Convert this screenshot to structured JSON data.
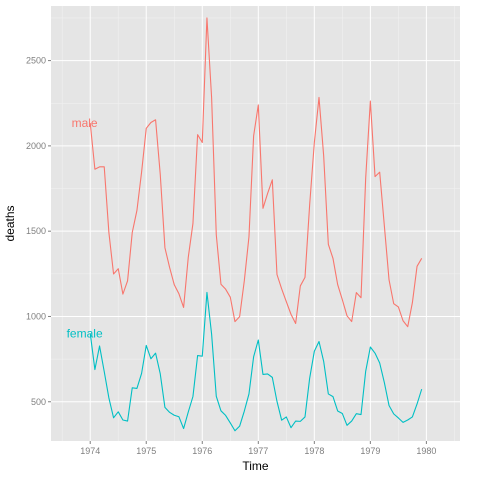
{
  "chart_data": {
    "type": "line",
    "xlabel": "Time",
    "ylabel": "deaths",
    "xlim": [
      1973.3,
      1980.6
    ],
    "ylim": [
      270,
      2820
    ],
    "x_ticks": [
      1974,
      1975,
      1976,
      1977,
      1978,
      1979,
      1980
    ],
    "x_tick_labels": [
      "1974",
      "1975",
      "1976",
      "1977",
      "1978",
      "1979",
      "1980"
    ],
    "y_ticks": [
      500,
      1000,
      1500,
      2000,
      2500
    ],
    "y_tick_labels": [
      "500",
      "1000",
      "1500",
      "2000",
      "2500"
    ],
    "grid": true,
    "x_start": 1974,
    "x_step_months": 1,
    "series": [
      {
        "name": "male",
        "color": "#F8766D",
        "values": [
          2134,
          1863,
          1877,
          1877,
          1492,
          1249,
          1280,
          1131,
          1209,
          1492,
          1621,
          1846,
          2103,
          2137,
          2153,
          1833,
          1403,
          1288,
          1186,
          1133,
          1053,
          1347,
          1545,
          2066,
          2020,
          2750,
          2283,
          1479,
          1189,
          1160,
          1113,
          970,
          999,
          1208,
          1467,
          2059,
          2240,
          1634,
          1722,
          1801,
          1246,
          1162,
          1087,
          1013,
          959,
          1179,
          1229,
          1655,
          2019,
          2284,
          1942,
          1423,
          1340,
          1187,
          1098,
          1004,
          970,
          1140,
          1110,
          1812,
          2263,
          1820,
          1846,
          1531,
          1215,
          1075,
          1056,
          975,
          940,
          1081,
          1294,
          1341
        ]
      },
      {
        "name": "female",
        "color": "#00BFC4",
        "values": [
          901,
          689,
          827,
          677,
          522,
          406,
          441,
          393,
          387,
          582,
          578,
          666,
          830,
          752,
          785,
          664,
          467,
          438,
          421,
          412,
          343,
          440,
          531,
          771,
          767,
          1141,
          896,
          532,
          447,
          420,
          376,
          330,
          357,
          445,
          546,
          764,
          862,
          660,
          663,
          643,
          502,
          392,
          411,
          348,
          387,
          385,
          411,
          638,
          796,
          853,
          737,
          546,
          530,
          446,
          431,
          362,
          387,
          430,
          425,
          679,
          821,
          785,
          727,
          612,
          478,
          429,
          405,
          379,
          393,
          411,
          487,
          574
        ]
      }
    ],
    "label_positions": {
      "male": [
        1973.9,
        2134
      ],
      "female": [
        1973.9,
        901
      ]
    }
  }
}
